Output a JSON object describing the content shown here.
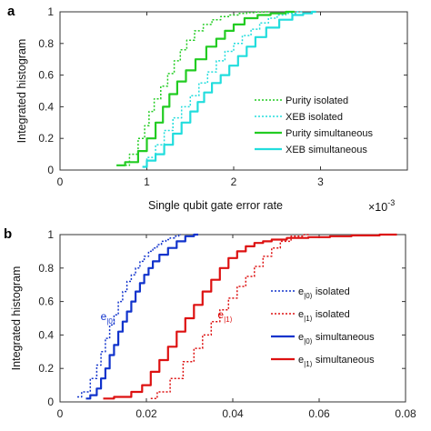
{
  "chart_data": [
    {
      "type": "line",
      "panel_label": "a",
      "xlabel": "Single qubit gate error rate",
      "x_multiplier": "×10",
      "x_multiplier_exp": "-3",
      "ylabel": "Integrated histogram",
      "xlim": [
        0,
        4
      ],
      "ylim": [
        0,
        1
      ],
      "x_ticks": [
        "0",
        "1",
        "2",
        "3"
      ],
      "x_tick_values": [
        0,
        1,
        2,
        3
      ],
      "y_ticks": [
        "0",
        "0.2",
        "0.4",
        "0.6",
        "0.8",
        "1"
      ],
      "y_tick_values": [
        0,
        0.2,
        0.4,
        0.6,
        0.8,
        1
      ],
      "grid": false,
      "legend_position": "right",
      "colors": {
        "green": "#22cc22",
        "cyan": "#22dddd"
      },
      "series": [
        {
          "name": "Purity isolated",
          "color": "#22cc22",
          "dash": "dotted",
          "width": 1.5,
          "x": [
            0.75,
            0.85,
            0.95,
            1.0,
            1.05,
            1.12,
            1.2,
            1.28,
            1.35,
            1.42,
            1.5,
            1.6,
            1.7,
            1.8,
            1.9,
            2.0,
            2.1,
            2.2,
            2.3,
            2.4
          ],
          "y": [
            0.03,
            0.1,
            0.2,
            0.28,
            0.37,
            0.45,
            0.53,
            0.61,
            0.69,
            0.76,
            0.82,
            0.88,
            0.92,
            0.95,
            0.97,
            0.98,
            0.99,
            0.995,
            0.998,
            1.0
          ]
        },
        {
          "name": "XEB isolated",
          "color": "#22dddd",
          "dash": "dotted",
          "width": 1.5,
          "x": [
            0.95,
            1.05,
            1.15,
            1.25,
            1.35,
            1.45,
            1.55,
            1.65,
            1.75,
            1.85,
            1.95,
            2.05,
            2.15,
            2.25,
            2.35,
            2.45,
            2.55,
            2.65,
            2.8
          ],
          "y": [
            0.02,
            0.08,
            0.16,
            0.25,
            0.33,
            0.4,
            0.47,
            0.55,
            0.62,
            0.69,
            0.75,
            0.8,
            0.85,
            0.89,
            0.93,
            0.96,
            0.98,
            0.99,
            1.0
          ]
        },
        {
          "name": "Purity simultaneous",
          "color": "#22cc22",
          "dash": "solid",
          "width": 2.2,
          "x": [
            0.65,
            0.85,
            0.95,
            1.05,
            1.15,
            1.22,
            1.3,
            1.4,
            1.5,
            1.62,
            1.75,
            1.85,
            1.95,
            2.05,
            2.2,
            2.35,
            2.5,
            2.7
          ],
          "y": [
            0.03,
            0.05,
            0.12,
            0.2,
            0.3,
            0.4,
            0.48,
            0.56,
            0.63,
            0.7,
            0.78,
            0.83,
            0.88,
            0.92,
            0.96,
            0.98,
            0.99,
            1.0
          ]
        },
        {
          "name": "XEB simultaneous",
          "color": "#22dddd",
          "dash": "solid",
          "width": 2.2,
          "x": [
            0.95,
            1.05,
            1.15,
            1.25,
            1.35,
            1.45,
            1.55,
            1.62,
            1.7,
            1.8,
            1.9,
            2.0,
            2.1,
            2.2,
            2.3,
            2.45,
            2.6,
            2.75,
            2.85,
            2.95
          ],
          "y": [
            0.02,
            0.06,
            0.1,
            0.16,
            0.23,
            0.3,
            0.37,
            0.43,
            0.49,
            0.55,
            0.6,
            0.66,
            0.72,
            0.78,
            0.84,
            0.9,
            0.95,
            0.98,
            0.99,
            1.0
          ]
        }
      ]
    },
    {
      "type": "line",
      "panel_label": "b",
      "xlabel": "",
      "ylabel": "Integrated histogram",
      "xlim": [
        0,
        0.08
      ],
      "ylim": [
        0,
        1
      ],
      "x_ticks": [
        "0",
        "0.02",
        "0.04",
        "0.06",
        "0.08"
      ],
      "x_tick_values": [
        0,
        0.02,
        0.04,
        0.06,
        0.08
      ],
      "y_ticks": [
        "0",
        "0.2",
        "0.4",
        "0.6",
        "0.8",
        "1"
      ],
      "y_tick_values": [
        0,
        0.2,
        0.4,
        0.6,
        0.8,
        1
      ],
      "grid": false,
      "legend_position": "right",
      "colors": {
        "blue": "#1133cc",
        "red": "#dd1111"
      },
      "annotations": [
        {
          "text": "e",
          "subscript": "|0⟩",
          "x": 0.0094,
          "y": 0.49,
          "color": "#1133cc"
        },
        {
          "text": "e",
          "subscript": "|1⟩",
          "x": 0.0365,
          "y": 0.5,
          "color": "#dd1111"
        }
      ],
      "series": [
        {
          "name": "e",
          "name_sub": "|0⟩",
          "name_suffix": " isolated",
          "color": "#1133cc",
          "dash": "dotted",
          "width": 1.5,
          "x": [
            0.004,
            0.006,
            0.008,
            0.009,
            0.01,
            0.011,
            0.012,
            0.013,
            0.014,
            0.015,
            0.016,
            0.017,
            0.018,
            0.019,
            0.02,
            0.021,
            0.022,
            0.023,
            0.024,
            0.025,
            0.026,
            0.027,
            0.028
          ],
          "y": [
            0.03,
            0.06,
            0.14,
            0.22,
            0.3,
            0.38,
            0.46,
            0.52,
            0.6,
            0.66,
            0.72,
            0.76,
            0.8,
            0.84,
            0.87,
            0.9,
            0.92,
            0.94,
            0.96,
            0.97,
            0.98,
            0.99,
            1.0
          ]
        },
        {
          "name": "e",
          "name_sub": "|1⟩",
          "name_suffix": " isolated",
          "color": "#dd1111",
          "dash": "dotted",
          "width": 1.5,
          "x": [
            0.021,
            0.024,
            0.027,
            0.03,
            0.032,
            0.034,
            0.036,
            0.038,
            0.04,
            0.042,
            0.044,
            0.046,
            0.048,
            0.05,
            0.052,
            0.055,
            0.058
          ],
          "y": [
            0.02,
            0.06,
            0.14,
            0.24,
            0.32,
            0.4,
            0.48,
            0.55,
            0.62,
            0.69,
            0.75,
            0.81,
            0.87,
            0.92,
            0.96,
            0.99,
            1.0
          ]
        },
        {
          "name": "e",
          "name_sub": "|0⟩",
          "name_suffix": " simultaneous",
          "color": "#1133cc",
          "dash": "solid",
          "width": 2.2,
          "x": [
            0.006,
            0.008,
            0.009,
            0.01,
            0.011,
            0.012,
            0.013,
            0.014,
            0.015,
            0.016,
            0.017,
            0.018,
            0.019,
            0.02,
            0.021,
            0.022,
            0.024,
            0.026,
            0.028,
            0.03,
            0.032
          ],
          "y": [
            0.02,
            0.04,
            0.08,
            0.14,
            0.2,
            0.28,
            0.34,
            0.42,
            0.48,
            0.54,
            0.6,
            0.66,
            0.71,
            0.76,
            0.8,
            0.84,
            0.88,
            0.92,
            0.96,
            0.99,
            1.0
          ]
        },
        {
          "name": "e",
          "name_sub": "|1⟩",
          "name_suffix": " simultaneous",
          "color": "#dd1111",
          "dash": "solid",
          "width": 2.2,
          "x": [
            0.01,
            0.015,
            0.018,
            0.02,
            0.022,
            0.024,
            0.026,
            0.028,
            0.03,
            0.032,
            0.034,
            0.036,
            0.038,
            0.04,
            0.042,
            0.044,
            0.046,
            0.048,
            0.05,
            0.055,
            0.06,
            0.065,
            0.07,
            0.078
          ],
          "y": [
            0.02,
            0.03,
            0.06,
            0.1,
            0.18,
            0.25,
            0.33,
            0.42,
            0.5,
            0.58,
            0.66,
            0.73,
            0.8,
            0.86,
            0.9,
            0.93,
            0.95,
            0.96,
            0.97,
            0.98,
            0.985,
            0.99,
            0.995,
            1.0
          ]
        }
      ]
    }
  ]
}
